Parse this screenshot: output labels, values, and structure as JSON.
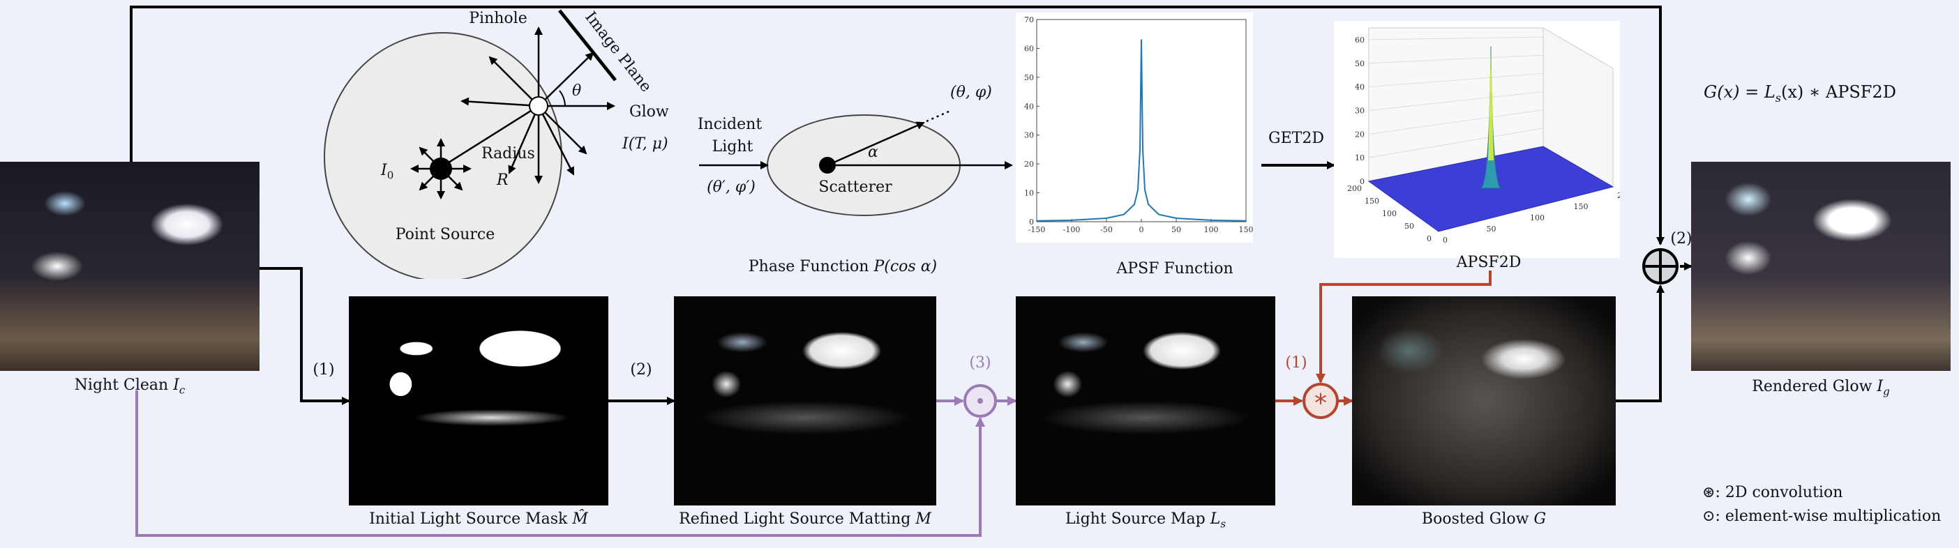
{
  "nodes": {
    "night_clean": "Night Clean",
    "night_clean_sym": "I",
    "night_clean_sub": "c",
    "initial_mask": "Initial Light Source Mask",
    "initial_mask_sym": "M̂",
    "refined_matting": "Refined Light Source Matting",
    "refined_matting_sym": "M",
    "light_map": "Light Source Map",
    "light_map_sym": "L",
    "light_map_sub": "s",
    "boosted_glow": "Boosted Glow",
    "boosted_glow_sym": "G",
    "rendered_glow": "Rendered Glow",
    "rendered_glow_sym": "I",
    "rendered_glow_sub": "g",
    "apsf_function": "APSF Function",
    "apsf2d": "APSF2D",
    "get2d": "GET2D",
    "phase_function": "Phase Function",
    "phase_function_sym": "P(cos α)"
  },
  "step_labels": {
    "s1_left": "(1)",
    "s2_mid": "(2)",
    "s3_purple": "(3)",
    "s1_red": "(1)",
    "s2_right": "(2)"
  },
  "optics": {
    "pinhole": "Pinhole",
    "image_plane": "Image Plane",
    "theta": "θ",
    "glow": "Glow",
    "glow_formula": "I(T, μ)",
    "radius": "Radius",
    "radius_sym": "R",
    "i0": "I",
    "i0_sub": "0",
    "point_source": "Point Source",
    "incident_light_1": "Incident",
    "incident_light_2": "Light",
    "theta_phi_prime": "(θ′, φ′)",
    "theta_phi": "(θ, φ)",
    "alpha": "α",
    "scatterer": "Scatterer"
  },
  "formula": "G(x) = L_s(x) ∗ APSF2D",
  "formula_parts": {
    "lhs": "G(x) = L",
    "sub": "s",
    "rhs": "(x) ∗ APSF2D"
  },
  "legend": {
    "conv_symbol": "⊛",
    "conv_text": ": 2D convolution",
    "mult_symbol": "⊙",
    "mult_text": ": element-wise multiplication"
  },
  "colors": {
    "purple": "#9b7bb5",
    "red": "#b5452f",
    "background": "#eef1fa",
    "line": "#000000",
    "apsf_line": "#1f77b4",
    "surface": "#3d3ed6"
  },
  "chart_data": [
    {
      "type": "line",
      "title": "APSF Function",
      "x": [
        -150,
        -100,
        -50,
        -25,
        -10,
        -5,
        -2,
        0,
        2,
        5,
        10,
        25,
        50,
        100,
        150
      ],
      "series": [
        {
          "values": [
            0.3,
            0.5,
            1.2,
            2.5,
            6,
            11,
            25,
            63,
            25,
            11,
            6,
            2.5,
            1.2,
            0.5,
            0.3
          ]
        }
      ],
      "xlim": [
        -150,
        150
      ],
      "ylim": [
        0,
        70
      ],
      "xticks": [
        "-150",
        "-100",
        "-50",
        "0",
        "50",
        "100",
        "150"
      ],
      "yticks": [
        "0",
        "10",
        "20",
        "30",
        "40",
        "50",
        "60",
        "70"
      ]
    },
    {
      "type": "heatmap",
      "title": "APSF2D",
      "zticks": [
        "0",
        "10",
        "20",
        "30",
        "40",
        "50",
        "60"
      ],
      "xticks": [
        "0",
        "50",
        "100",
        "150",
        "200"
      ],
      "yticks": [
        "0",
        "50",
        "100",
        "150",
        "200"
      ],
      "peak": 60
    }
  ]
}
